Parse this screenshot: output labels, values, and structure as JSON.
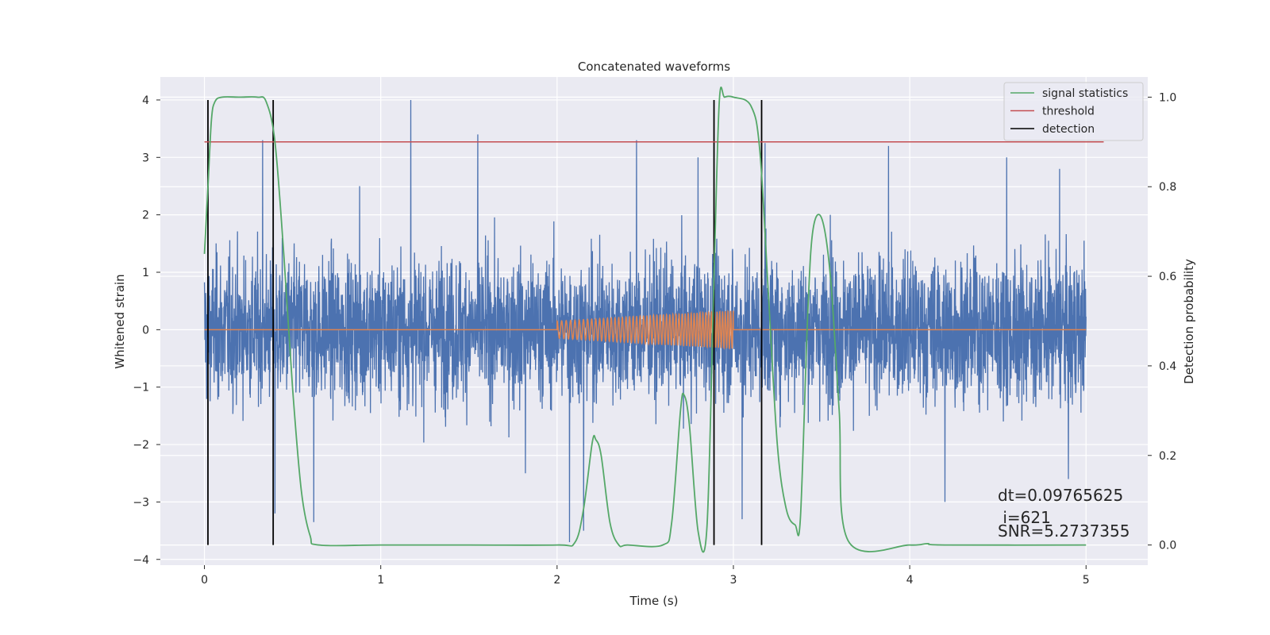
{
  "chart_data": {
    "type": "line",
    "title": "Concatenated waveforms",
    "xlabel": "Time (s)",
    "ylabel": "Whitened strain",
    "y2label": "Detection probability",
    "xlim": [
      -0.25,
      5.35
    ],
    "ylim": [
      -4.1,
      4.4
    ],
    "y2lim": [
      -0.045,
      1.045
    ],
    "xticks": [
      0,
      1,
      2,
      3,
      4,
      5
    ],
    "yticks": [
      -4,
      -3,
      -2,
      -1,
      0,
      1,
      2,
      3,
      4
    ],
    "y2ticks": [
      0.0,
      0.2,
      0.4,
      0.6,
      0.8,
      1.0
    ],
    "xtick_labels": [
      "0",
      "1",
      "2",
      "3",
      "4",
      "5"
    ],
    "ytick_labels": [
      "−4",
      "−3",
      "−2",
      "−1",
      "0",
      "1",
      "2",
      "3",
      "4"
    ],
    "y2tick_labels": [
      "0.0",
      "0.2",
      "0.4",
      "0.6",
      "0.8",
      "1.0"
    ],
    "grid": true,
    "legend_position": "top-right",
    "colors": {
      "strain": "#4c72b0",
      "template": "#dd8452",
      "signal_statistics": "#55a868",
      "threshold": "#c44e52",
      "detection": "#000000",
      "background": "#eaeaf2",
      "grid": "#ffffff"
    },
    "legend": [
      "signal statistics",
      "threshold",
      "detection"
    ],
    "strain_noise": {
      "x_range": [
        0,
        5
      ],
      "typical_abs_max": 1.3,
      "peaks": [
        {
          "x": 0.33,
          "y": 3.3
        },
        {
          "x": 0.4,
          "y": -3.2
        },
        {
          "x": 0.62,
          "y": -3.35
        },
        {
          "x": 0.88,
          "y": 2.5
        },
        {
          "x": 1.17,
          "y": 4.0
        },
        {
          "x": 1.55,
          "y": 3.4
        },
        {
          "x": 1.82,
          "y": -2.5
        },
        {
          "x": 2.07,
          "y": -3.7
        },
        {
          "x": 2.15,
          "y": -3.5
        },
        {
          "x": 2.45,
          "y": 3.3
        },
        {
          "x": 2.8,
          "y": 3.0
        },
        {
          "x": 3.05,
          "y": -3.3
        },
        {
          "x": 3.18,
          "y": 3.25
        },
        {
          "x": 3.55,
          "y": 2.0
        },
        {
          "x": 3.88,
          "y": 3.2
        },
        {
          "x": 4.2,
          "y": -3.0
        },
        {
          "x": 4.55,
          "y": 3.0
        },
        {
          "x": 4.9,
          "y": -2.6
        },
        {
          "x": 4.85,
          "y": 2.8
        }
      ]
    },
    "template_signal": {
      "flat_range": [
        0,
        5
      ],
      "chirp_range": [
        2.0,
        3.0
      ],
      "amplitude_start": 0.15,
      "amplitude_end": 0.33
    },
    "signal_statistics": {
      "x": [
        0.0,
        0.02,
        0.04,
        0.06,
        0.1,
        0.2,
        0.3,
        0.35,
        0.4,
        0.45,
        0.5,
        0.55,
        0.6,
        0.65,
        1.0,
        1.5,
        2.0,
        2.1,
        2.15,
        2.2,
        2.22,
        2.25,
        2.3,
        2.35,
        2.4,
        2.6,
        2.65,
        2.7,
        2.72,
        2.75,
        2.8,
        2.85,
        2.89,
        2.92,
        2.95,
        3.0,
        3.1,
        3.15,
        3.2,
        3.25,
        3.3,
        3.35,
        3.38,
        3.42,
        3.45,
        3.5,
        3.55,
        3.6,
        3.65,
        4.0,
        4.1,
        4.2,
        5.0
      ],
      "values": [
        0.65,
        0.8,
        0.95,
        0.99,
        1.0,
        1.0,
        1.0,
        0.99,
        0.9,
        0.65,
        0.35,
        0.12,
        0.02,
        0.0,
        0.0,
        0.0,
        0.0,
        0.005,
        0.08,
        0.23,
        0.235,
        0.2,
        0.05,
        0.0,
        0.0,
        0.0,
        0.05,
        0.3,
        0.335,
        0.27,
        0.03,
        0.04,
        0.6,
        0.99,
        1.0,
        1.0,
        0.98,
        0.88,
        0.55,
        0.22,
        0.08,
        0.045,
        0.06,
        0.5,
        0.7,
        0.73,
        0.6,
        0.3,
        0.01,
        0.0,
        0.003,
        0.0,
        0.0
      ]
    },
    "threshold": {
      "y": 0.9,
      "x_range": [
        0,
        5.1
      ]
    },
    "detections": [
      0.02,
      0.39,
      2.89,
      3.16
    ],
    "annotations": [
      "dt=0.09765625",
      " i=621",
      "SNR=5.2737355"
    ]
  }
}
